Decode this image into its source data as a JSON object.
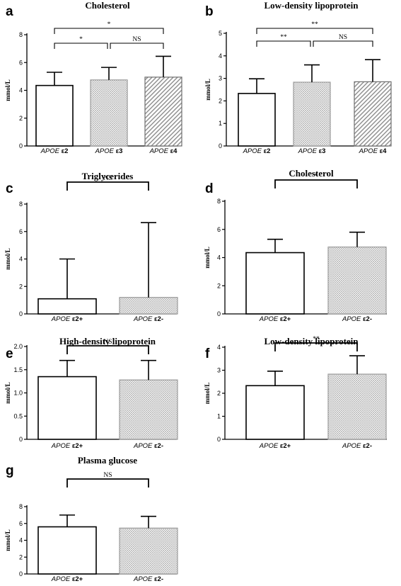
{
  "chart_data": [
    {
      "type": "bar",
      "panel": "a",
      "title": "Cholesterol",
      "ylabel": "mmol/L",
      "ylim": [
        0,
        8
      ],
      "yticks": [
        "0",
        "2",
        "4",
        "6",
        "8"
      ],
      "categories": [
        {
          "gene": "APOE",
          "allele": "ε2"
        },
        {
          "gene": "APOE",
          "allele": "ε3"
        },
        {
          "gene": "APOE",
          "allele": "ε4"
        }
      ],
      "values": [
        4.35,
        4.75,
        4.95
      ],
      "errors": [
        0.95,
        0.9,
        1.5
      ],
      "fills": [
        "white",
        "dots",
        "hatch"
      ],
      "significance": [
        {
          "from": 0,
          "to": 1,
          "label": "*",
          "level": 1
        },
        {
          "from": 1,
          "to": 2,
          "label": "NS",
          "level": 1
        },
        {
          "from": 0,
          "to": 2,
          "label": "*",
          "level": 2
        }
      ]
    },
    {
      "type": "bar",
      "panel": "b",
      "title": "Low-density lipoprotein",
      "ylabel": "mmol/L",
      "ylim": [
        0,
        5
      ],
      "yticks": [
        "0",
        "1",
        "2",
        "3",
        "4",
        "5"
      ],
      "categories": [
        {
          "gene": "APOE",
          "allele": "ε2"
        },
        {
          "gene": "APOE",
          "allele": "ε3"
        },
        {
          "gene": "APOE",
          "allele": "ε4"
        }
      ],
      "values": [
        2.33,
        2.83,
        2.85
      ],
      "errors": [
        0.65,
        0.77,
        0.98
      ],
      "fills": [
        "white",
        "dots",
        "hatch"
      ],
      "significance": [
        {
          "from": 0,
          "to": 1,
          "label": "**",
          "level": 1
        },
        {
          "from": 1,
          "to": 2,
          "label": "NS",
          "level": 1
        },
        {
          "from": 0,
          "to": 2,
          "label": "**",
          "level": 2
        }
      ]
    },
    {
      "type": "bar",
      "panel": "c",
      "title": "Triglycerides",
      "ylabel": "mmol/L",
      "ylim": [
        0,
        8
      ],
      "yticks": [
        "0",
        "2",
        "4",
        "6",
        "8"
      ],
      "categories": [
        {
          "gene": "APOE",
          "allele": "ε2+"
        },
        {
          "gene": "APOE",
          "allele": "ε2-"
        }
      ],
      "values": [
        1.1,
        1.2
      ],
      "errors": [
        2.9,
        5.45
      ],
      "fills": [
        "white",
        "dots"
      ],
      "significance": [
        {
          "from": 0,
          "to": 1,
          "label": "NS",
          "level": 1
        }
      ]
    },
    {
      "type": "bar",
      "panel": "d",
      "title": "Cholesterol",
      "ylabel": "mmol/L",
      "ylim": [
        0,
        8
      ],
      "yticks": [
        "0",
        "2",
        "4",
        "6",
        "8"
      ],
      "categories": [
        {
          "gene": "APOE",
          "allele": "ε2+"
        },
        {
          "gene": "APOE",
          "allele": "ε2-"
        }
      ],
      "values": [
        4.35,
        4.75
      ],
      "errors": [
        0.95,
        1.05
      ],
      "fills": [
        "white",
        "dots"
      ],
      "significance": [
        {
          "from": 0,
          "to": 1,
          "label": "*",
          "level": 1
        }
      ]
    },
    {
      "type": "bar",
      "panel": "e",
      "title": "High-density lipoprotein",
      "ylabel": "mmol/L",
      "ylim": [
        0,
        2.0
      ],
      "yticks": [
        "0",
        "0.5",
        "1.0",
        "1.5",
        "2.0"
      ],
      "categories": [
        {
          "gene": "APOE",
          "allele": "ε2+"
        },
        {
          "gene": "APOE",
          "allele": "ε2-"
        }
      ],
      "values": [
        1.35,
        1.28
      ],
      "errors": [
        0.35,
        0.42
      ],
      "fills": [
        "white",
        "dots"
      ],
      "significance": [
        {
          "from": 0,
          "to": 1,
          "label": "NS",
          "level": 1
        }
      ]
    },
    {
      "type": "bar",
      "panel": "f",
      "title": "Low-density lipoprotein",
      "ylabel": "mmol/L",
      "ylim": [
        0,
        4
      ],
      "yticks": [
        "0",
        "1",
        "2",
        "3",
        "4"
      ],
      "categories": [
        {
          "gene": "APOE",
          "allele": "ε2+"
        },
        {
          "gene": "APOE",
          "allele": "ε2-"
        }
      ],
      "values": [
        2.33,
        2.83
      ],
      "errors": [
        0.63,
        0.8
      ],
      "fills": [
        "white",
        "dots"
      ],
      "significance": [
        {
          "from": 0,
          "to": 1,
          "label": "**",
          "level": 1
        }
      ]
    },
    {
      "type": "bar",
      "panel": "g",
      "title": "Plasma glucose",
      "ylabel": "mmol/L",
      "ylim": [
        0,
        8
      ],
      "yticks": [
        "0",
        "2",
        "4",
        "6",
        "8"
      ],
      "categories": [
        {
          "gene": "APOE",
          "allele": "ε2+"
        },
        {
          "gene": "APOE",
          "allele": "ε2-"
        }
      ],
      "values": [
        5.6,
        5.45
      ],
      "errors": [
        1.4,
        1.4
      ],
      "fills": [
        "white",
        "dots"
      ],
      "significance": [
        {
          "from": 0,
          "to": 1,
          "label": "NS",
          "level": 1
        }
      ]
    }
  ]
}
